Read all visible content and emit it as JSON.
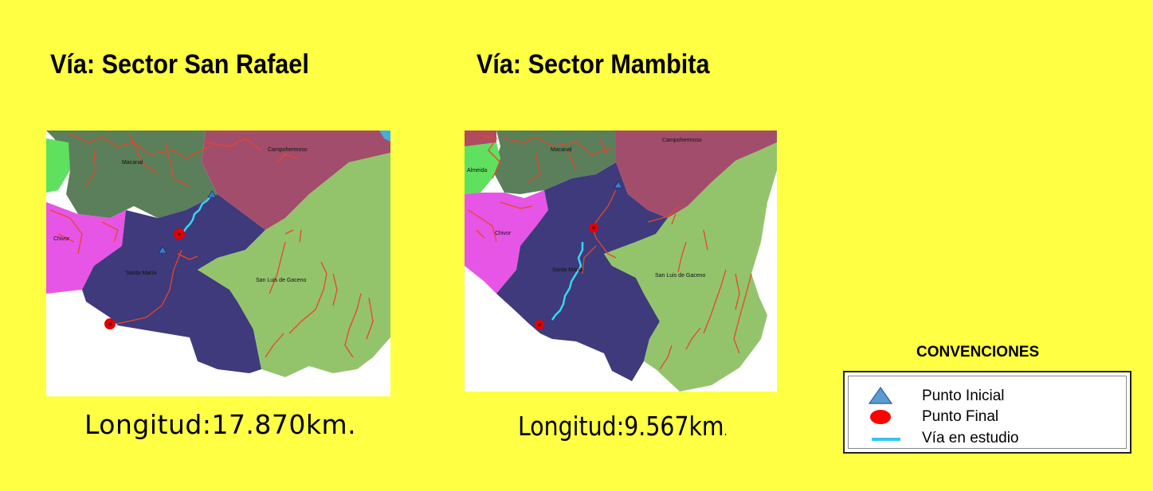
{
  "panels": [
    {
      "title": "Vía: Sector San Rafael",
      "length_label": "Longitud:17.870km.",
      "places": [
        "Campohermoso",
        "Macanal",
        "Chivor",
        "Santa María",
        "San Luis de Gaceno"
      ]
    },
    {
      "title": "Vía: Sector Mambita",
      "length_main": "Longitud:9.567km",
      "length_suffix": ".",
      "places": [
        "Campohermoso",
        "Macanal",
        "Almeida",
        "Chivor",
        "Santa María",
        "San Luis de Gaceno"
      ]
    }
  ],
  "legend": {
    "title": "CONVENCIONES",
    "items": [
      {
        "label": "Punto Inicial",
        "icon": "blue-triangle-icon"
      },
      {
        "label": "Punto Final",
        "icon": "red-dot-icon"
      },
      {
        "label": "Vía en estudio",
        "icon": "cyan-line-icon"
      }
    ]
  },
  "colors": {
    "background": "#ffff44",
    "campohermoso": "#a34d6c",
    "macanal": "#5b7f5a",
    "chivor": "#e655e6",
    "almeida": "#5fe05f",
    "santa_maria": "#3e3a7c",
    "san_luis_de_gaceno": "#93c46b",
    "roads": "#e8452a",
    "via_en_estudio": "#35d7ef",
    "punto_final": "#e30000",
    "punto_inicial": "#3a7bd5"
  }
}
